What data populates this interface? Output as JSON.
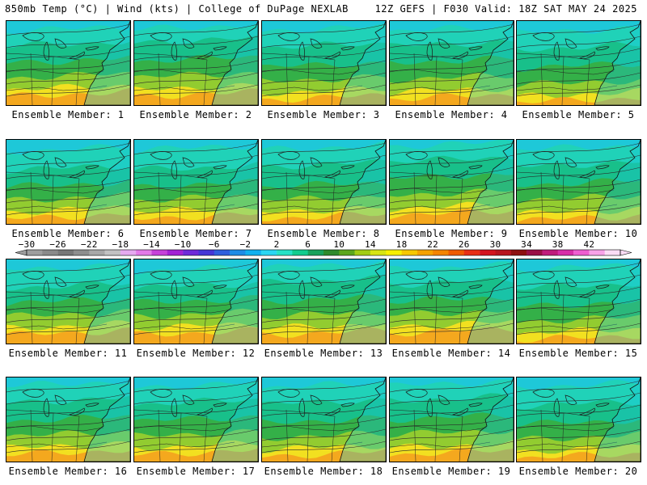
{
  "header": {
    "left": "850mb Temp (°C) | Wind (kts) | College of DuPage NEXLAB",
    "right": "12Z GEFS | F030 Valid: 18Z SAT MAY 24 2025"
  },
  "panels": [
    {
      "label": "Ensemble Member: 1"
    },
    {
      "label": "Ensemble Member: 2"
    },
    {
      "label": "Ensemble Member: 3"
    },
    {
      "label": "Ensemble Member: 4"
    },
    {
      "label": "Ensemble Member: 5"
    },
    {
      "label": "Ensemble Member: 6"
    },
    {
      "label": "Ensemble Member: 7"
    },
    {
      "label": "Ensemble Member: 8"
    },
    {
      "label": "Ensemble Member: 9"
    },
    {
      "label": "Ensemble Member: 10"
    },
    {
      "label": "Ensemble Member: 11"
    },
    {
      "label": "Ensemble Member: 12"
    },
    {
      "label": "Ensemble Member: 13"
    },
    {
      "label": "Ensemble Member: 14"
    },
    {
      "label": "Ensemble Member: 15"
    },
    {
      "label": "Ensemble Member: 16"
    },
    {
      "label": "Ensemble Member: 17"
    },
    {
      "label": "Ensemble Member: 18"
    },
    {
      "label": "Ensemble Member: 19"
    },
    {
      "label": "Ensemble Member: 20"
    }
  ],
  "colorbar": {
    "ticks": [
      "-30",
      "-26",
      "-22",
      "-18",
      "-14",
      "-10",
      "-6",
      "-2",
      "2",
      "6",
      "10",
      "14",
      "18",
      "22",
      "26",
      "30",
      "34",
      "38",
      "42"
    ],
    "colors": [
      "#9e9e9e",
      "#8a8a8a",
      "#777777",
      "#8e8e8e",
      "#a8a8a8",
      "#c2c2c2",
      "#e6aaf0",
      "#e37ae8",
      "#c641d9",
      "#a322d4",
      "#6f2ad9",
      "#4536d6",
      "#2f5fdd",
      "#1f8ce6",
      "#12b0ef",
      "#2bd6f2",
      "#25e2c6",
      "#12cc8e",
      "#1aa25c",
      "#2f8a2c",
      "#5ca61c",
      "#a2cc14",
      "#d8e414",
      "#f8f000",
      "#f8c800",
      "#f6a200",
      "#f48400",
      "#f05a00",
      "#e82e14",
      "#d4141e",
      "#b8141e",
      "#8e1010",
      "#9a1046",
      "#c01c7c",
      "#d82ea8",
      "#ef5ed0",
      "#f7a2e8",
      "#fadcf5"
    ]
  },
  "maps": [
    {
      "zone_levels": [
        0.12,
        0.3,
        0.5,
        0.68,
        0.82
      ]
    },
    {
      "zone_levels": [
        0.1,
        0.26,
        0.48,
        0.67,
        0.82
      ]
    },
    {
      "zone_levels": [
        0.12,
        0.32,
        0.55,
        0.72,
        0.86
      ]
    },
    {
      "zone_levels": [
        0.12,
        0.3,
        0.5,
        0.7,
        0.85
      ]
    },
    {
      "zone_levels": [
        0.14,
        0.34,
        0.56,
        0.76,
        0.9
      ]
    },
    {
      "zone_levels": [
        0.14,
        0.36,
        0.56,
        0.72,
        0.86
      ]
    },
    {
      "zone_levels": [
        0.12,
        0.36,
        0.56,
        0.72,
        0.86
      ]
    },
    {
      "zone_levels": [
        0.12,
        0.32,
        0.56,
        0.72,
        0.86
      ]
    },
    {
      "zone_levels": [
        0.08,
        0.26,
        0.46,
        0.66,
        0.82
      ]
    },
    {
      "zone_levels": [
        0.12,
        0.32,
        0.54,
        0.72,
        0.88
      ]
    },
    {
      "zone_levels": [
        0.12,
        0.34,
        0.52,
        0.68,
        0.82
      ]
    },
    {
      "zone_levels": [
        0.14,
        0.34,
        0.52,
        0.68,
        0.82
      ]
    },
    {
      "zone_levels": [
        0.1,
        0.28,
        0.5,
        0.68,
        0.82
      ]
    },
    {
      "zone_levels": [
        0.12,
        0.3,
        0.5,
        0.66,
        0.8
      ]
    },
    {
      "zone_levels": [
        0.12,
        0.34,
        0.56,
        0.74,
        0.88
      ]
    },
    {
      "zone_levels": [
        0.1,
        0.3,
        0.52,
        0.7,
        0.84
      ]
    },
    {
      "zone_levels": [
        0.12,
        0.32,
        0.52,
        0.7,
        0.84
      ]
    },
    {
      "zone_levels": [
        0.12,
        0.32,
        0.54,
        0.72,
        0.86
      ]
    },
    {
      "zone_levels": [
        0.1,
        0.28,
        0.5,
        0.68,
        0.84
      ]
    },
    {
      "zone_levels": [
        0.12,
        0.34,
        0.56,
        0.74,
        0.88
      ]
    }
  ]
}
